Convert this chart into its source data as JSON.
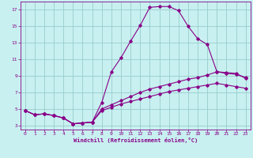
{
  "xlabel": "Windchill (Refroidissement éolien,°C)",
  "bg_color": "#c8f0f0",
  "line_color": "#880088",
  "xlim": [
    -0.5,
    23.5
  ],
  "ylim": [
    2.5,
    18.0
  ],
  "xticks": [
    0,
    1,
    2,
    3,
    4,
    5,
    6,
    7,
    8,
    9,
    10,
    11,
    12,
    13,
    14,
    15,
    16,
    17,
    18,
    19,
    20,
    21,
    22,
    23
  ],
  "yticks": [
    3,
    5,
    7,
    9,
    11,
    13,
    15,
    17
  ],
  "grid_color": "#99cccc",
  "curves": [
    {
      "x": [
        0,
        1,
        2,
        3,
        4,
        5,
        6,
        7,
        8,
        9,
        10,
        11,
        12,
        13,
        14,
        15,
        16,
        17,
        18,
        19,
        20,
        21,
        22,
        23
      ],
      "y": [
        4.8,
        4.3,
        4.4,
        4.2,
        3.9,
        3.2,
        3.3,
        3.4,
        5.8,
        9.5,
        11.2,
        13.2,
        15.1,
        17.3,
        17.4,
        17.4,
        16.9,
        15.0,
        13.5,
        12.8,
        9.5,
        9.4,
        9.3,
        8.7
      ]
    },
    {
      "x": [
        0,
        1,
        2,
        3,
        4,
        5,
        6,
        7,
        8,
        9,
        10,
        11,
        12,
        13,
        14,
        15,
        16,
        17,
        18,
        19,
        20,
        21,
        22,
        23
      ],
      "y": [
        4.8,
        4.3,
        4.4,
        4.2,
        3.9,
        3.2,
        3.3,
        3.4,
        5.0,
        5.5,
        6.0,
        6.5,
        7.0,
        7.4,
        7.7,
        8.0,
        8.3,
        8.6,
        8.8,
        9.1,
        9.5,
        9.3,
        9.2,
        8.8
      ]
    },
    {
      "x": [
        0,
        1,
        2,
        3,
        4,
        5,
        6,
        7,
        8,
        9,
        10,
        11,
        12,
        13,
        14,
        15,
        16,
        17,
        18,
        19,
        20,
        21,
        22,
        23
      ],
      "y": [
        4.8,
        4.3,
        4.4,
        4.2,
        3.9,
        3.2,
        3.3,
        3.4,
        4.8,
        5.2,
        5.6,
        5.9,
        6.2,
        6.5,
        6.8,
        7.1,
        7.3,
        7.5,
        7.7,
        7.9,
        8.1,
        7.9,
        7.7,
        7.5
      ]
    }
  ]
}
